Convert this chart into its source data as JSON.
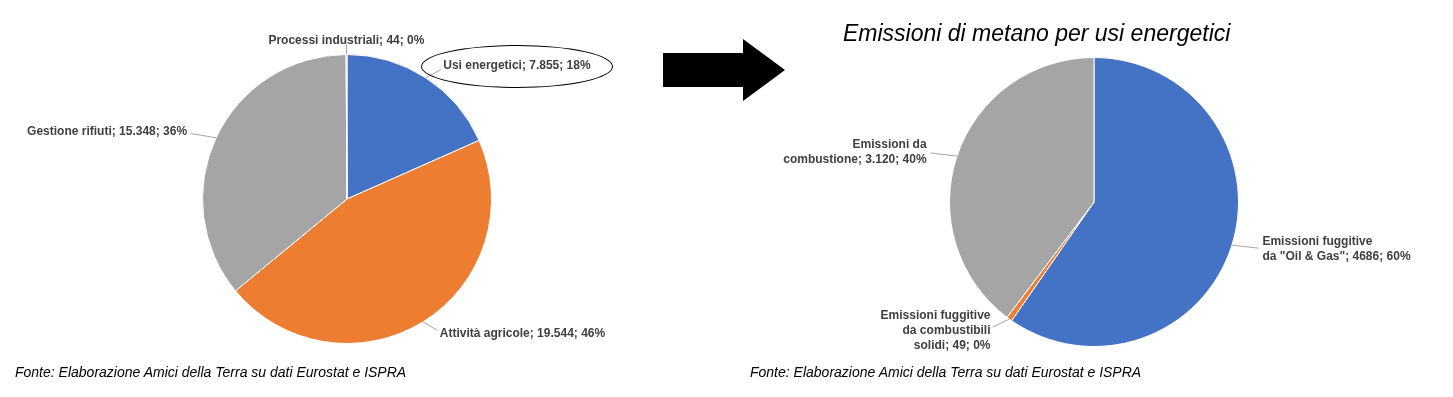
{
  "chart_data": [
    {
      "type": "pie",
      "categories": [
        "Usi energetici",
        "Attività agricole",
        "Gestione rifiuti",
        "Processi industriali"
      ],
      "values": [
        7855,
        19544,
        15348,
        44
      ],
      "colors": [
        "#4472c4",
        "#ed7d31",
        "#a5a5a5",
        "#ffc000"
      ],
      "value_labels": [
        "7.855; 18%",
        "19.544; 46%",
        "15.348; 36%",
        "44; 0%"
      ],
      "annotations": [
        "Fonte: Elaborazione Amici della Terra su dati Eurostat e ISPRA"
      ]
    },
    {
      "type": "pie",
      "title": "Emissioni di metano per usi energetici",
      "categories": [
        "Emissioni fuggitive da \"Oil & Gas\"",
        "Emissioni fuggitive da combustibili solidi",
        "Emissioni da combustione"
      ],
      "values": [
        4686,
        49,
        3120
      ],
      "colors": [
        "#4472c4",
        "#ed7d31",
        "#a5a5a5"
      ],
      "value_labels": [
        "4686; 60%",
        "49; 0%",
        "3.120; 40%"
      ],
      "annotations": [
        "Fonte: Elaborazione Amici della Terra su dati Eurostat e ISPRA"
      ]
    }
  ]
}
